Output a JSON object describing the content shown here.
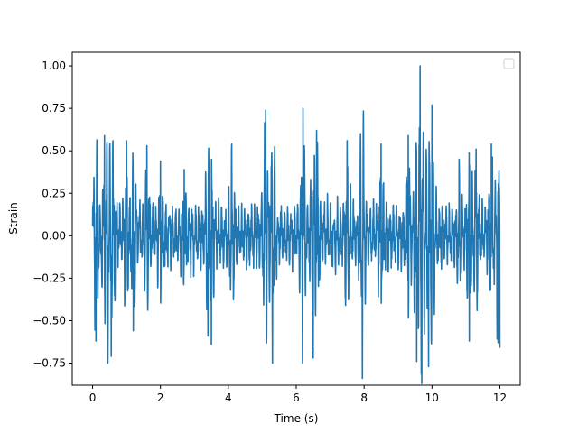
{
  "chart_data": {
    "type": "line",
    "title": "",
    "xlabel": "Time (s)",
    "ylabel": "Strain",
    "xlim": [
      -0.6,
      12.6
    ],
    "ylim": [
      -0.88,
      1.08
    ],
    "x_ticks": [
      0,
      2,
      4,
      6,
      8,
      10,
      12
    ],
    "x_tick_labels": [
      "0",
      "2",
      "4",
      "6",
      "8",
      "10",
      "12"
    ],
    "y_ticks": [
      -0.75,
      -0.5,
      -0.25,
      0.0,
      0.25,
      0.5,
      0.75,
      1.0
    ],
    "y_tick_labels": [
      "−0.75",
      "−0.50",
      "−0.25",
      "0.00",
      "0.25",
      "0.50",
      "0.75",
      "1.00"
    ],
    "grid": false,
    "legend": {
      "placement": "upper-right",
      "entries": []
    },
    "series": [
      {
        "color": "#1f77b4",
        "x_range": [
          0,
          12
        ],
        "peaks": [
          {
            "x": 0.1,
            "y": 0.54
          },
          {
            "x": 0.1,
            "y": -0.62
          },
          {
            "x": 0.35,
            "y": 0.59
          },
          {
            "x": 0.45,
            "y": -0.75
          },
          {
            "x": 0.55,
            "y": -0.71
          },
          {
            "x": 0.6,
            "y": 0.56
          },
          {
            "x": 1.0,
            "y": 0.56
          },
          {
            "x": 1.2,
            "y": -0.56
          },
          {
            "x": 1.6,
            "y": 0.53
          },
          {
            "x": 2.0,
            "y": 0.44
          },
          {
            "x": 2.7,
            "y": 0.39
          },
          {
            "x": 3.4,
            "y": 0.51
          },
          {
            "x": 3.4,
            "y": -0.59
          },
          {
            "x": 3.5,
            "y": -0.64
          },
          {
            "x": 4.1,
            "y": 0.54
          },
          {
            "x": 5.1,
            "y": 0.74
          },
          {
            "x": 5.3,
            "y": -0.75
          },
          {
            "x": 6.2,
            "y": 0.75
          },
          {
            "x": 6.5,
            "y": -0.72
          },
          {
            "x": 6.6,
            "y": 0.62
          },
          {
            "x": 7.5,
            "y": 0.56
          },
          {
            "x": 7.95,
            "y": -0.84
          },
          {
            "x": 8.5,
            "y": 0.54
          },
          {
            "x": 9.3,
            "y": 0.59
          },
          {
            "x": 9.55,
            "y": -0.74
          },
          {
            "x": 9.65,
            "y": 1.0
          },
          {
            "x": 9.7,
            "y": -0.87
          },
          {
            "x": 9.9,
            "y": -0.77
          },
          {
            "x": 10.0,
            "y": 0.77
          },
          {
            "x": 10.8,
            "y": 0.45
          },
          {
            "x": 11.1,
            "y": -0.62
          },
          {
            "x": 11.3,
            "y": 0.51
          },
          {
            "x": 11.75,
            "y": 0.54
          },
          {
            "x": 11.95,
            "y": -0.63
          },
          {
            "x": 12.0,
            "y": -0.66
          }
        ]
      }
    ]
  }
}
